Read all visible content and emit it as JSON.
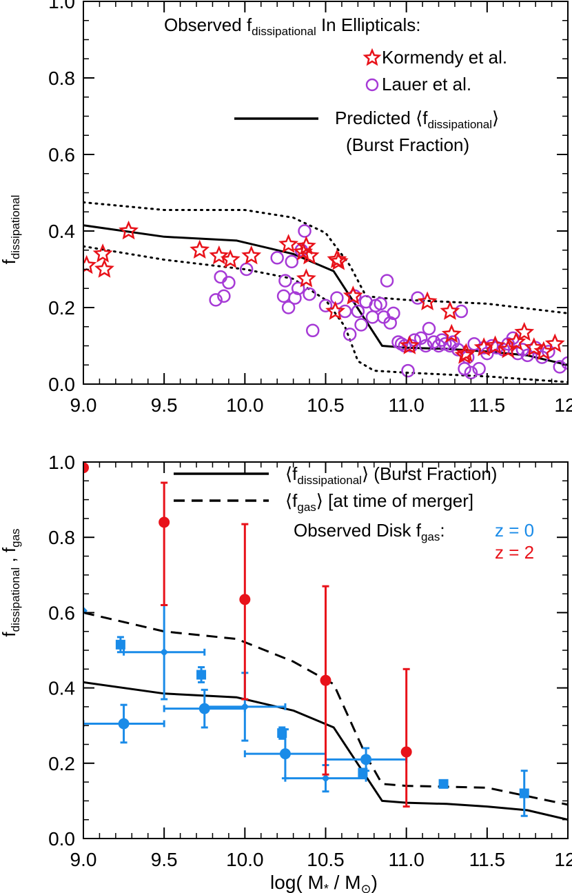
{
  "chart_data": [
    {
      "type": "scatter",
      "title": "",
      "ylabel": {
        "main": "f",
        "sub": "dissipational"
      },
      "xlim": [
        9.0,
        12.0
      ],
      "ylim": [
        0.0,
        1.0
      ],
      "xticks": [
        "9.0",
        "9.5",
        "10.0",
        "10.5",
        "11.0",
        "11.5",
        "12"
      ],
      "yticks": [
        "0.0",
        "0.2",
        "0.4",
        "0.6",
        "0.8",
        "1.0"
      ],
      "tick_values_x": [
        9.0,
        9.5,
        10.0,
        10.5,
        11.0,
        11.5,
        12.0
      ],
      "tick_values_y": [
        0.0,
        0.2,
        0.4,
        0.6,
        0.8,
        1.0
      ],
      "header": {
        "pre": "Observed f",
        "sub": "dissipational",
        "post": " In Ellipticals:"
      },
      "legend": {
        "kormendy": "Kormendy et al.",
        "lauer": "Lauer et al.",
        "predicted_pre": "Predicted ⟨f",
        "predicted_sub": "dissipational",
        "predicted_post": "⟩",
        "predicted_line2": "(Burst Fraction)"
      },
      "colors": {
        "kormendy": "#e8121a",
        "lauer": "#a63ad6",
        "line": "#000000"
      },
      "series": [
        {
          "name": "Predicted ⟨f_dissipational⟩",
          "style": "solid",
          "x": [
            9.0,
            9.5,
            9.95,
            10.3,
            10.55,
            10.85,
            11.0,
            11.25,
            11.5,
            11.75,
            12.0
          ],
          "y": [
            0.415,
            0.385,
            0.375,
            0.34,
            0.295,
            0.1,
            0.095,
            0.092,
            0.085,
            0.075,
            0.05
          ]
        },
        {
          "name": "",
          "style": "dotted",
          "x": [
            9.0,
            9.5,
            10.0,
            10.3,
            10.5,
            10.65,
            10.75,
            10.85,
            11.0,
            11.5,
            12.0
          ],
          "y": [
            0.475,
            0.455,
            0.455,
            0.435,
            0.395,
            0.31,
            0.23,
            0.225,
            0.22,
            0.21,
            0.185
          ]
        },
        {
          "name": "",
          "style": "dotted",
          "x": [
            9.0,
            9.5,
            10.0,
            10.3,
            10.5,
            10.62,
            10.7,
            10.8,
            11.0,
            11.5,
            12.0
          ],
          "y": [
            0.36,
            0.325,
            0.3,
            0.275,
            0.22,
            0.15,
            0.06,
            0.035,
            0.03,
            0.02,
            0.005
          ]
        },
        {
          "name": "Kormendy et al.",
          "marker": "star",
          "x": [
            9.02,
            9.12,
            9.13,
            9.28,
            9.72,
            9.84,
            9.91,
            10.04,
            10.27,
            10.36,
            10.38,
            10.4,
            10.38,
            10.57,
            10.58,
            10.56,
            10.67,
            11.02,
            11.13,
            11.27,
            11.28,
            11.36,
            11.37,
            11.48,
            11.55,
            11.63,
            11.68,
            11.73,
            11.79,
            11.85,
            11.92
          ],
          "y": [
            0.31,
            0.34,
            0.3,
            0.4,
            0.35,
            0.335,
            0.325,
            0.335,
            0.365,
            0.345,
            0.275,
            0.335,
            0.36,
            0.325,
            0.32,
            0.19,
            0.23,
            0.1,
            0.215,
            0.19,
            0.13,
            0.075,
            0.08,
            0.095,
            0.1,
            0.09,
            0.11,
            0.135,
            0.095,
            0.085,
            0.105
          ]
        },
        {
          "name": "Lauer et al.",
          "marker": "circle",
          "x": [
            9.82,
            9.85,
            9.87,
            9.9,
            10.01,
            10.2,
            10.24,
            10.25,
            10.27,
            10.29,
            10.31,
            10.33,
            10.35,
            10.37,
            10.4,
            10.42,
            10.5,
            10.57,
            10.62,
            10.65,
            10.68,
            10.7,
            10.72,
            10.75,
            10.79,
            10.81,
            10.84,
            10.86,
            10.88,
            10.9,
            10.92,
            10.95,
            10.97,
            10.99,
            11.01,
            11.03,
            11.05,
            11.07,
            11.09,
            11.12,
            11.14,
            11.17,
            11.2,
            11.22,
            11.24,
            11.27,
            11.29,
            11.32,
            11.34,
            11.36,
            11.38,
            11.4,
            11.42,
            11.45,
            11.48,
            11.5,
            11.53,
            11.56,
            11.6,
            11.63,
            11.66,
            11.69,
            11.72,
            11.75,
            11.8,
            11.84,
            11.88,
            11.95,
            12.0
          ],
          "y": [
            0.22,
            0.28,
            0.23,
            0.265,
            0.3,
            0.33,
            0.23,
            0.27,
            0.2,
            0.32,
            0.225,
            0.25,
            0.35,
            0.4,
            0.235,
            0.14,
            0.205,
            0.225,
            0.19,
            0.13,
            0.23,
            0.19,
            0.155,
            0.215,
            0.175,
            0.205,
            0.21,
            0.175,
            0.27,
            0.16,
            0.185,
            0.11,
            0.105,
            0.1,
            0.035,
            0.1,
            0.115,
            0.225,
            0.12,
            0.1,
            0.145,
            0.11,
            0.1,
            0.115,
            0.105,
            0.1,
            0.11,
            0.09,
            0.19,
            0.04,
            0.07,
            0.03,
            0.105,
            0.04,
            0.095,
            0.08,
            0.1,
            0.095,
            0.09,
            0.105,
            0.12,
            0.08,
            0.09,
            0.075,
            0.095,
            0.07,
            0.085,
            0.045,
            0.055
          ]
        }
      ]
    },
    {
      "type": "scatter",
      "title": "",
      "xlabel": {
        "pre": "log( M",
        "sub1": "*",
        "mid": " / M",
        "sub2": "⊙",
        "post": ")"
      },
      "ylabel": {
        "main1": "f",
        "sub1": "dissipational",
        "mid": " , f",
        "sub2": "gas"
      },
      "xlim": [
        9.0,
        12.0
      ],
      "ylim": [
        0.0,
        1.0
      ],
      "xticks": [
        "9.0",
        "9.5",
        "10.0",
        "10.5",
        "11.0",
        "11.5",
        "12"
      ],
      "yticks": [
        "0.0",
        "0.2",
        "0.4",
        "0.6",
        "0.8",
        "1.0"
      ],
      "tick_values_x": [
        9.0,
        9.5,
        10.0,
        10.5,
        11.0,
        11.5,
        12.0
      ],
      "tick_values_y": [
        0.0,
        0.2,
        0.4,
        0.6,
        0.8,
        1.0
      ],
      "legend": {
        "burst_pre": "⟨f",
        "burst_sub": "dissipational",
        "burst_post": "⟩ (Burst Fraction)",
        "gas_pre": "⟨f",
        "gas_sub": "gas",
        "gas_post": "⟩ [at time of merger]",
        "obs_pre": "Observed Disk f",
        "obs_sub": "gas",
        "obs_post": ":",
        "z0": "z = 0",
        "z2": "z = 2"
      },
      "colors": {
        "z0": "#1a8be8",
        "z2": "#e8121a",
        "line": "#000000"
      },
      "series": [
        {
          "name": "⟨f_dissipational⟩ (Burst Fraction)",
          "style": "solid",
          "x": [
            9.0,
            9.5,
            9.95,
            10.3,
            10.55,
            10.85,
            11.0,
            11.25,
            11.5,
            11.75,
            12.0
          ],
          "y": [
            0.415,
            0.385,
            0.375,
            0.34,
            0.295,
            0.1,
            0.095,
            0.092,
            0.085,
            0.075,
            0.05
          ]
        },
        {
          "name": "⟨f_gas⟩ [at time of merger]",
          "style": "dashed",
          "x": [
            9.0,
            9.5,
            9.95,
            10.3,
            10.55,
            10.75,
            10.85,
            11.0,
            11.5,
            12.0
          ],
          "y": [
            0.6,
            0.55,
            0.53,
            0.47,
            0.41,
            0.22,
            0.145,
            0.14,
            0.135,
            0.09
          ]
        },
        {
          "name": "z = 0",
          "marker": "circle",
          "points": [
            {
              "x": 9.25,
              "y": 0.305,
              "yerr": 0.05,
              "xerr": 0.25
            },
            {
              "x": 9.75,
              "y": 0.345,
              "yerr": 0.05,
              "xerr": 0.25
            },
            {
              "x": 10.25,
              "y": 0.225,
              "yerr": 0.065,
              "xerr": 0.25
            },
            {
              "x": 10.75,
              "y": 0.21,
              "yerr": 0.03,
              "xerr": 0.25
            }
          ]
        },
        {
          "name": "z = 0",
          "marker": "diamond",
          "points": [
            {
              "x": 9.0,
              "y": 0.605,
              "yerr": 0,
              "xerr": 0
            },
            {
              "x": 9.5,
              "y": 0.495,
              "yerr": 0.125,
              "xerr": 0.25
            },
            {
              "x": 10.0,
              "y": 0.35,
              "yerr": 0.09,
              "xerr": 0.25
            },
            {
              "x": 10.5,
              "y": 0.16,
              "yerr": 0.035,
              "xerr": 0.25
            }
          ]
        },
        {
          "name": "z = 0",
          "marker": "square",
          "points": [
            {
              "x": 9.23,
              "y": 0.515,
              "yerr": 0.02,
              "xerr": 0
            },
            {
              "x": 9.73,
              "y": 0.435,
              "yerr": 0.02,
              "xerr": 0
            },
            {
              "x": 10.23,
              "y": 0.28,
              "yerr": 0.015,
              "xerr": 0
            },
            {
              "x": 10.73,
              "y": 0.175,
              "yerr": 0.01,
              "xerr": 0
            },
            {
              "x": 11.23,
              "y": 0.145,
              "yerr": 0,
              "xerr": 0
            },
            {
              "x": 11.73,
              "y": 0.12,
              "yerr": 0.06,
              "xerr": 0
            }
          ]
        },
        {
          "name": "z = 2",
          "marker": "circle",
          "points": [
            {
              "x": 9.0,
              "y": 0.985,
              "yerr_lo": 0,
              "yerr_hi": 0
            },
            {
              "x": 9.5,
              "y": 0.84,
              "yerr_lo": 0.22,
              "yerr_hi": 0.105
            },
            {
              "x": 10.0,
              "y": 0.635,
              "yerr_lo": 0.265,
              "yerr_hi": 0.2
            },
            {
              "x": 10.5,
              "y": 0.42,
              "yerr_lo": 0.25,
              "yerr_hi": 0.25
            },
            {
              "x": 11.0,
              "y": 0.23,
              "yerr_lo": 0.145,
              "yerr_hi": 0.22
            }
          ]
        }
      ]
    }
  ]
}
